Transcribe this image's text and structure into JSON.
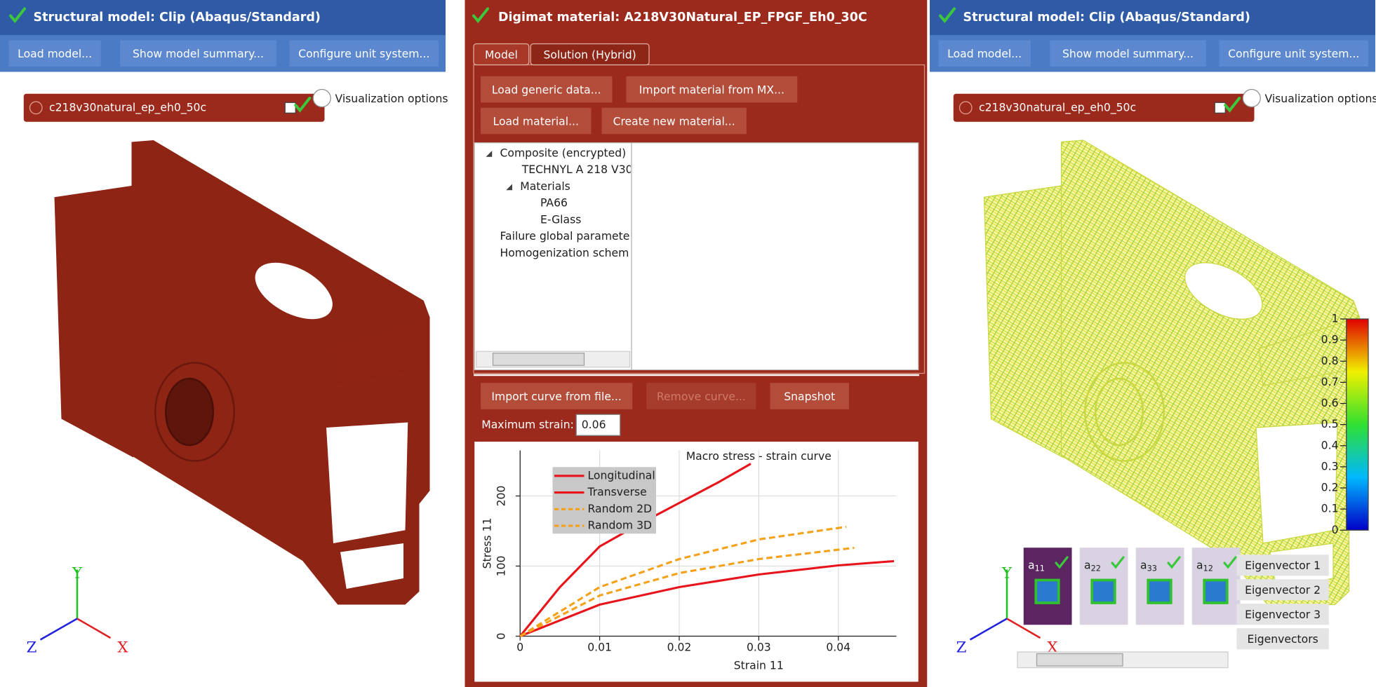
{
  "left_panel": {
    "title": "Structural model: Clip (Abaqus/Standard)",
    "toolbar": [
      "Load model...",
      "Show model summary...",
      "Configure unit system..."
    ],
    "model_name": "c218v30natural_ep_eh0_50c",
    "visualization_options": "Visualization options",
    "axes": {
      "x": "X",
      "y": "Y",
      "z": "Z"
    }
  },
  "middle_panel": {
    "title": "Digimat material: A218V30Natural_EP_FPGF_Eh0_30C",
    "tabs": [
      "Model",
      "Solution (Hybrid)"
    ],
    "buttons": [
      "Load generic data...",
      "Import material from MX...",
      "Load material...",
      "Create new material..."
    ],
    "tree": [
      {
        "label": "Composite (encrypted)",
        "children": [
          {
            "label": "TECHNYL A 218 V30"
          },
          {
            "label": "Materials",
            "children": [
              {
                "label": "PA66"
              },
              {
                "label": "E-Glass"
              }
            ]
          }
        ]
      },
      {
        "label": "Failure global paramete"
      },
      {
        "label": "Homogenization schem"
      }
    ],
    "curve_buttons": [
      "Import curve from file...",
      "Remove curve...",
      "Snapshot"
    ],
    "max_strain_label": "Maximum strain:",
    "max_strain_value": 0.06
  },
  "chart_data": {
    "type": "line",
    "title": "Macro stress - strain curve",
    "x_label": "Strain 11",
    "y_label": "Stress 11",
    "xlim": [
      0,
      0.0473
    ],
    "ylim": [
      0,
      265
    ],
    "xticks": [
      0,
      0.01,
      0.02,
      0.03,
      0.04
    ],
    "yticks": [
      0,
      100,
      200
    ],
    "grid": true,
    "legend": "upper-left",
    "series": [
      {
        "name": "Longitudinal",
        "color": "#e8141c",
        "dash": false,
        "x": [
          0,
          0.005,
          0.01,
          0.015,
          0.02,
          0.025,
          0.029
        ],
        "values": [
          0,
          70,
          128,
          160,
          190,
          220,
          246
        ]
      },
      {
        "name": "Transverse",
        "color": "#e8141c",
        "dash": false,
        "x": [
          0,
          0.01,
          0.02,
          0.03,
          0.04,
          0.047
        ],
        "values": [
          0,
          45,
          70,
          88,
          101,
          107
        ]
      },
      {
        "name": "Random 2D",
        "color": "#f4a11c",
        "dash": true,
        "x": [
          0,
          0.01,
          0.02,
          0.03,
          0.041
        ],
        "values": [
          0,
          70,
          110,
          138,
          156
        ]
      },
      {
        "name": "Random 3D",
        "color": "#f4a11c",
        "dash": true,
        "x": [
          0,
          0.01,
          0.02,
          0.03,
          0.042
        ],
        "values": [
          0,
          58,
          90,
          110,
          126
        ]
      }
    ]
  },
  "right_panel": {
    "title": "Structural model: Clip (Abaqus/Standard)",
    "toolbar": [
      "Load model...",
      "Show model summary...",
      "Configure unit system..."
    ],
    "model_name": "c218v30natural_ep_eh0_50c",
    "visualization_options": "Visualization options",
    "axes": {
      "x": "X",
      "y": "Y",
      "z": "Z"
    },
    "colorbar": {
      "ylim": [
        0,
        1
      ],
      "ticks": [
        0,
        0.1,
        0.2,
        0.3,
        0.4,
        0.5,
        0.6,
        0.7,
        0.8,
        0.9,
        1
      ]
    },
    "thumbnails": [
      {
        "base": "a",
        "sub": "11"
      },
      {
        "base": "a",
        "sub": "22"
      },
      {
        "base": "a",
        "sub": "33"
      },
      {
        "base": "a",
        "sub": "12"
      }
    ],
    "eigen_buttons": [
      "Eigenvector 1",
      "Eigenvector 2",
      "Eigenvector 3",
      "Eigenvectors"
    ]
  }
}
